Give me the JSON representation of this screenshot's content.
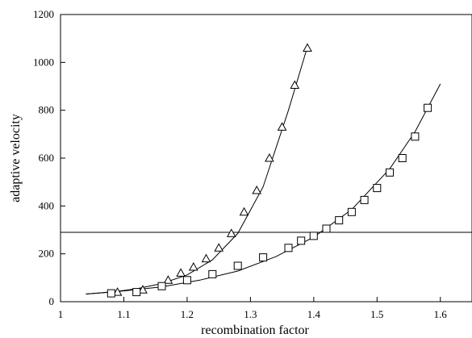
{
  "chart_data": {
    "type": "scatter",
    "title": "",
    "xlabel": "recombination factor",
    "ylabel": "adaptive velocity",
    "xlim": [
      1,
      1.65
    ],
    "ylim": [
      0,
      1200
    ],
    "x_ticks": [
      "1",
      "1.1",
      "1.2",
      "1.3",
      "1.4",
      "1.5",
      "1.6"
    ],
    "y_ticks": [
      "0",
      "200",
      "400",
      "600",
      "800",
      "1000",
      "1200"
    ],
    "grid": false,
    "reference_line_y": 290,
    "series": [
      {
        "marker": "triangle",
        "x": [
          1.09,
          1.13,
          1.17,
          1.19,
          1.21,
          1.23,
          1.25,
          1.27,
          1.29,
          1.31,
          1.33,
          1.35,
          1.37,
          1.39
        ],
        "y": [
          40,
          50,
          90,
          120,
          145,
          180,
          225,
          285,
          375,
          465,
          600,
          730,
          905,
          1060
        ]
      },
      {
        "marker": "square",
        "x": [
          1.08,
          1.12,
          1.16,
          1.2,
          1.24,
          1.28,
          1.32,
          1.36,
          1.38,
          1.4,
          1.42,
          1.44,
          1.46,
          1.48,
          1.5,
          1.52,
          1.54,
          1.56,
          1.58
        ],
        "y": [
          35,
          40,
          65,
          90,
          115,
          150,
          185,
          225,
          255,
          275,
          305,
          340,
          375,
          425,
          475,
          540,
          600,
          690,
          810
        ]
      }
    ],
    "fit_curves": [
      {
        "for_marker": "triangle",
        "x": [
          1.04,
          1.08,
          1.12,
          1.16,
          1.2,
          1.24,
          1.28,
          1.32,
          1.36,
          1.39
        ],
        "y": [
          32,
          40,
          54,
          76,
          112,
          175,
          285,
          480,
          800,
          1065
        ]
      },
      {
        "for_marker": "square",
        "x": [
          1.04,
          1.1,
          1.16,
          1.22,
          1.28,
          1.34,
          1.4,
          1.46,
          1.52,
          1.56,
          1.6
        ],
        "y": [
          32,
          45,
          62,
          90,
          128,
          188,
          270,
          385,
          555,
          710,
          910
        ]
      }
    ]
  }
}
